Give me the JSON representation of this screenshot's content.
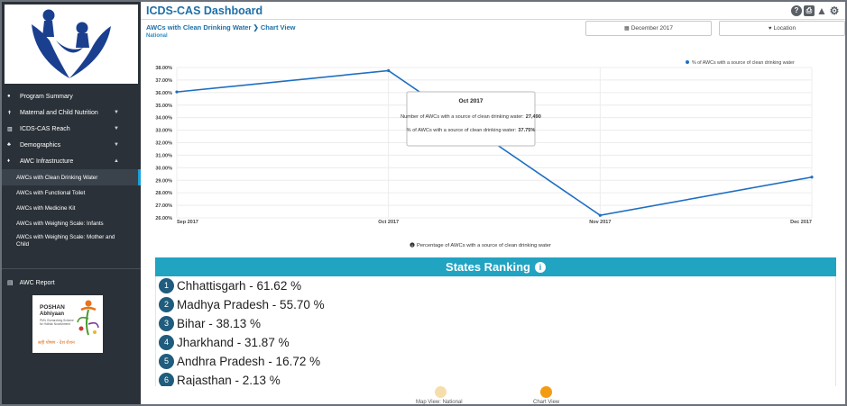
{
  "header": {
    "title": "ICDS-CAS Dashboard",
    "breadcrumb_parent": "AWCs with Clean Drinking Water",
    "breadcrumb_separator": "❯",
    "breadcrumb_current": "Chart View",
    "location_label": "National",
    "icons": [
      "help-icon",
      "print-icon",
      "warning-icon",
      "settings-icon"
    ]
  },
  "controls": {
    "date": "December 2017",
    "date_icon": "calendar-icon",
    "location": "Location",
    "location_icon": "map-marker-icon"
  },
  "sidebar": {
    "items": [
      {
        "label": "Program Summary",
        "icon": "home-icon",
        "chevron": false
      },
      {
        "label": "Maternal and Child Nutrition",
        "icon": "nutrition-icon",
        "chevron": true
      },
      {
        "label": "ICDS-CAS Reach",
        "icon": "bar-chart-icon",
        "chevron": true
      },
      {
        "label": "Demographics",
        "icon": "group-icon",
        "chevron": true
      },
      {
        "label": "AWC Infrastructure",
        "icon": "map-pin-icon",
        "chevron": true
      }
    ],
    "sub_items": [
      {
        "label": "AWCs with Clean Drinking Water",
        "active": true
      },
      {
        "label": "AWCs with Functional Toilet",
        "active": false
      },
      {
        "label": "AWCs with Medicine Kit",
        "active": false
      },
      {
        "label": "AWCs with Weighing Scale: Infants",
        "active": false
      },
      {
        "label": "AWCs with Weighing Scale: Mother and Child",
        "active": false
      }
    ],
    "report_label": "AWC Report",
    "poshan_logo": {
      "title": "POSHAN",
      "subtitle": "Abhiyaan",
      "tagline": "PM's Overarching Scheme for Holistic Nourishment",
      "hindi": "सही पोषण - देश रोशन"
    }
  },
  "chart_data": {
    "type": "line",
    "x": [
      "Sep 2017",
      "Oct 2017",
      "Nov 2017",
      "Dec 2017"
    ],
    "series": [
      {
        "name": "% of AWCs with a source of clean drinking water",
        "values": [
          36.05,
          37.75,
          26.2,
          29.25
        ],
        "color": "#1f6fc2"
      }
    ],
    "yticks": [
      "38.00%",
      "37.00%",
      "36.00%",
      "35.00%",
      "34.00%",
      "33.00%",
      "32.00%",
      "31.00%",
      "30.00%",
      "29.00%",
      "28.00%",
      "27.00%",
      "26.00%"
    ],
    "ylim": [
      26,
      38
    ],
    "legend_position": "top-right",
    "grid": true,
    "tooltip": {
      "title": "Oct 2017",
      "line1": "Number of AWCs with a source of clean drinking water: ",
      "line1_value": "27,490",
      "line2": "% of AWCs with a source of clean drinking water: ",
      "line2_value": "37.75%"
    },
    "caption": "Percentage of AWCs with a source of clean drinking water"
  },
  "ranking": {
    "title": "States Ranking",
    "rows": [
      {
        "rank": "1",
        "text": "Chhattisgarh - 61.62 %"
      },
      {
        "rank": "2",
        "text": "Madhya Pradesh - 55.70 %"
      },
      {
        "rank": "3",
        "text": "Bihar - 38.13 %"
      },
      {
        "rank": "4",
        "text": "Jharkhand - 31.87 %"
      },
      {
        "rank": "5",
        "text": "Andhra Pradesh - 16.72 %"
      },
      {
        "rank": "6",
        "text": "Rajasthan - 2.13 %"
      }
    ]
  },
  "views": {
    "map_label": "Map View: National",
    "chart_label": "Chart View",
    "map_color": "#f6deac",
    "chart_color": "#f39c12"
  }
}
